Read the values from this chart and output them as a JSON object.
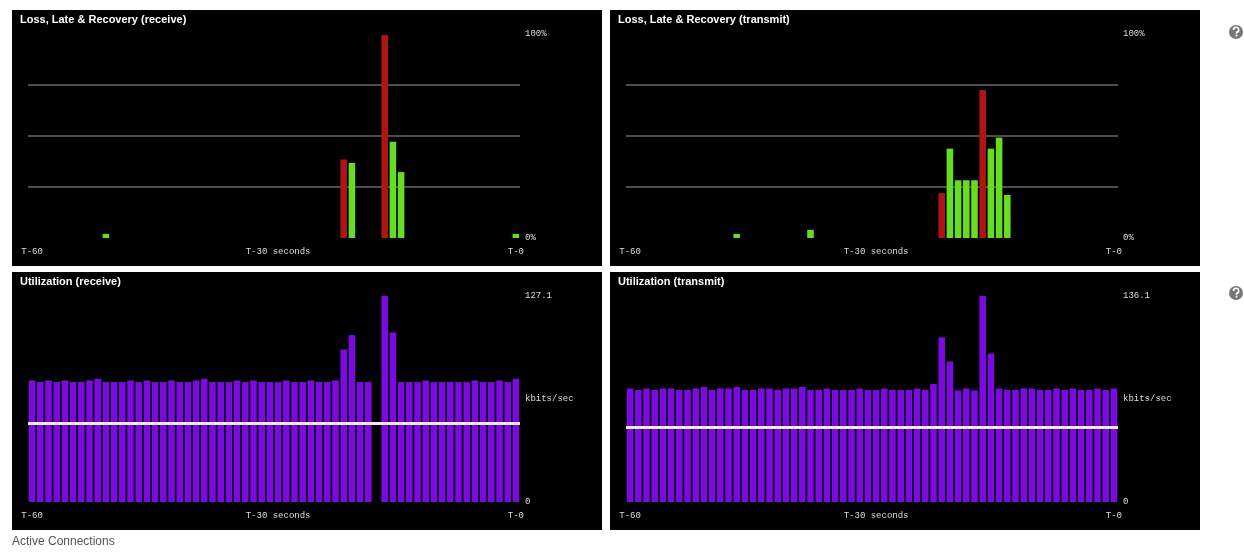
{
  "chart_data": [
    {
      "type": "bar",
      "title": "Loss, Late & Recovery (receive)",
      "categories": [
        "T-60",
        null,
        null,
        null,
        null,
        null,
        null,
        null,
        null,
        null,
        null,
        null,
        null,
        null,
        null,
        null,
        null,
        null,
        null,
        null,
        null,
        null,
        null,
        null,
        null,
        null,
        null,
        null,
        null,
        null,
        "T-30 seconds",
        null,
        null,
        null,
        null,
        null,
        null,
        null,
        null,
        null,
        null,
        null,
        null,
        null,
        null,
        null,
        null,
        null,
        null,
        null,
        null,
        null,
        null,
        null,
        null,
        null,
        null,
        null,
        null,
        "T-0"
      ],
      "ylim": [
        0,
        100
      ],
      "yticks": [
        {
          "value": 0,
          "label": "0%"
        },
        {
          "value": 25,
          "label": null
        },
        {
          "value": 50,
          "label": null
        },
        {
          "value": 75,
          "label": null
        },
        {
          "value": 100,
          "label": "100%"
        }
      ],
      "grid": "y",
      "series": [
        {
          "color": "#b01414",
          "values": [
            null,
            null,
            null,
            null,
            null,
            null,
            null,
            null,
            null,
            null,
            null,
            null,
            null,
            null,
            null,
            null,
            null,
            null,
            null,
            null,
            null,
            null,
            null,
            null,
            null,
            null,
            null,
            null,
            null,
            null,
            null,
            null,
            null,
            null,
            null,
            null,
            null,
            null,
            38.5,
            null,
            null,
            null,
            null,
            99.5,
            null,
            null,
            null,
            null,
            null,
            null,
            null,
            null,
            null,
            null,
            null,
            null,
            null,
            null,
            null,
            null
          ]
        },
        {
          "color": "#66dd22",
          "values": [
            null,
            null,
            null,
            null,
            null,
            null,
            null,
            null,
            null,
            2,
            null,
            null,
            null,
            null,
            null,
            null,
            null,
            null,
            null,
            null,
            null,
            null,
            null,
            null,
            null,
            null,
            null,
            null,
            null,
            null,
            null,
            null,
            null,
            null,
            null,
            null,
            null,
            null,
            null,
            36.8,
            null,
            null,
            null,
            null,
            47.2,
            32.3,
            null,
            null,
            null,
            null,
            null,
            null,
            null,
            null,
            null,
            null,
            null,
            null,
            null,
            2
          ]
        }
      ]
    },
    {
      "type": "bar",
      "title": "Loss, Late & Recovery (transmit)",
      "categories": [
        "T-60",
        null,
        null,
        null,
        null,
        null,
        null,
        null,
        null,
        null,
        null,
        null,
        null,
        null,
        null,
        null,
        null,
        null,
        null,
        null,
        null,
        null,
        null,
        null,
        null,
        null,
        null,
        null,
        null,
        null,
        "T-30 seconds",
        null,
        null,
        null,
        null,
        null,
        null,
        null,
        null,
        null,
        null,
        null,
        null,
        null,
        null,
        null,
        null,
        null,
        null,
        null,
        null,
        null,
        null,
        null,
        null,
        null,
        null,
        null,
        null,
        "T-0"
      ],
      "ylim": [
        0,
        100
      ],
      "yticks": [
        {
          "value": 0,
          "label": "0%"
        },
        {
          "value": 25,
          "label": null
        },
        {
          "value": 50,
          "label": null
        },
        {
          "value": 75,
          "label": null
        },
        {
          "value": 100,
          "label": "100%"
        }
      ],
      "grid": "y",
      "series": [
        {
          "color": "#b01414",
          "values": [
            null,
            null,
            null,
            null,
            null,
            null,
            null,
            null,
            null,
            null,
            null,
            null,
            null,
            null,
            null,
            null,
            null,
            null,
            null,
            null,
            null,
            null,
            null,
            null,
            null,
            null,
            null,
            null,
            null,
            null,
            null,
            null,
            null,
            null,
            null,
            null,
            null,
            null,
            22,
            null,
            null,
            null,
            null,
            72.5,
            null,
            null,
            null,
            null,
            null,
            null,
            null,
            null,
            null,
            null,
            null,
            null,
            null,
            null,
            null,
            null
          ]
        },
        {
          "color": "#66dd22",
          "values": [
            null,
            null,
            null,
            null,
            null,
            null,
            null,
            null,
            null,
            null,
            null,
            null,
            null,
            2,
            null,
            null,
            null,
            null,
            null,
            null,
            null,
            null,
            4,
            null,
            null,
            null,
            null,
            null,
            null,
            null,
            null,
            null,
            null,
            null,
            null,
            null,
            null,
            null,
            null,
            43.8,
            28.3,
            28.3,
            28.3,
            null,
            43.8,
            49.2,
            21.1,
            null,
            null,
            null,
            null,
            null,
            null,
            null,
            null,
            null,
            null,
            null,
            null,
            null
          ]
        }
      ]
    },
    {
      "type": "bar",
      "title": "Utilization (receive)",
      "ylabel": "kbits/sec",
      "categories": [
        "T-60",
        null,
        null,
        null,
        null,
        null,
        null,
        null,
        null,
        null,
        null,
        null,
        null,
        null,
        null,
        null,
        null,
        null,
        null,
        null,
        null,
        null,
        null,
        null,
        null,
        null,
        null,
        null,
        null,
        null,
        "T-30 seconds",
        null,
        null,
        null,
        null,
        null,
        null,
        null,
        null,
        null,
        null,
        null,
        null,
        null,
        null,
        null,
        null,
        null,
        null,
        null,
        null,
        null,
        null,
        null,
        null,
        null,
        null,
        null,
        null,
        "T-0"
      ],
      "ylim": [
        0,
        127.1
      ],
      "yticks": [
        0,
        127.1
      ],
      "ref_lines": [
        {
          "axis": "y",
          "value": 48.4,
          "color": "#f4e8ff"
        }
      ],
      "annotations": [
        "Active Connections"
      ],
      "series": [
        {
          "color": "#7a0ae0",
          "values": [
            75,
            74,
            75,
            74,
            75,
            74,
            74,
            75,
            76,
            74,
            74,
            74,
            75,
            74,
            75,
            74,
            74,
            75,
            74,
            74,
            75,
            76,
            74,
            74,
            74,
            75,
            74,
            75,
            74,
            74,
            74,
            75,
            74,
            74,
            75,
            74,
            74,
            75,
            94,
            103,
            74,
            74,
            null,
            127.1,
            104.6,
            74,
            74,
            74,
            75,
            74,
            74,
            74,
            74,
            74,
            75,
            74,
            74,
            75,
            74,
            76
          ]
        }
      ]
    },
    {
      "type": "bar",
      "title": "Utilization (transmit)",
      "ylabel": "kbits/sec",
      "categories": [
        "T-60",
        null,
        null,
        null,
        null,
        null,
        null,
        null,
        null,
        null,
        null,
        null,
        null,
        null,
        null,
        null,
        null,
        null,
        null,
        null,
        null,
        null,
        null,
        null,
        null,
        null,
        null,
        null,
        null,
        null,
        "T-30 seconds",
        null,
        null,
        null,
        null,
        null,
        null,
        null,
        null,
        null,
        null,
        null,
        null,
        null,
        null,
        null,
        null,
        null,
        null,
        null,
        null,
        null,
        null,
        null,
        null,
        null,
        null,
        null,
        null,
        "T-0"
      ],
      "ylim": [
        0,
        136.1
      ],
      "yticks": [
        0,
        136.1
      ],
      "ref_lines": [
        {
          "axis": "y",
          "value": 49.2,
          "color": "#f4e8ff"
        }
      ],
      "series": [
        {
          "color": "#7a0ae0",
          "values": [
            75,
            74,
            75,
            74,
            75,
            75,
            74,
            74,
            75,
            76,
            74,
            75,
            75,
            76,
            74,
            74,
            75,
            75,
            74,
            75,
            75,
            76,
            74,
            74,
            75,
            74,
            74,
            74,
            75,
            74,
            74,
            75,
            74,
            74,
            74,
            75,
            74,
            78,
            108.8,
            92.8,
            73.7,
            75,
            73.7,
            136.1,
            98.1,
            75,
            74,
            74,
            75,
            75,
            74,
            74,
            75,
            74,
            75,
            74,
            74,
            75,
            74,
            75
          ]
        }
      ]
    }
  ]
}
